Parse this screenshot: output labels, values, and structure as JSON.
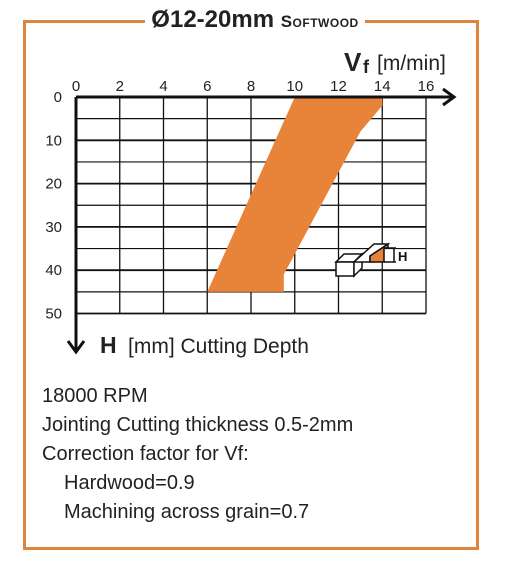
{
  "title": "Ø12-20mm",
  "subtitle": "Softwood",
  "chart_data": {
    "type": "area",
    "x_axis": {
      "label_symbol": "V",
      "label_subscript": "f",
      "label_unit": "[m/min]",
      "range": [
        0,
        16
      ],
      "ticks": [
        0,
        2,
        4,
        6,
        8,
        10,
        12,
        14,
        16
      ],
      "position": "top"
    },
    "y_axis": {
      "label_symbol": "H",
      "label_text": "[mm] Cutting Depth",
      "range": [
        0,
        50
      ],
      "ticks": [
        0,
        10,
        20,
        30,
        40,
        50
      ],
      "inverted": true
    },
    "grid": true,
    "region": {
      "color": "#e8833a",
      "points": [
        [
          10,
          0
        ],
        [
          14,
          0
        ],
        [
          14,
          2
        ],
        [
          13,
          8
        ],
        [
          9.5,
          41
        ],
        [
          9.5,
          45
        ],
        [
          6,
          45
        ]
      ]
    },
    "inset_label": "H"
  },
  "notes": [
    "18000 RPM",
    "Jointing Cutting thickness 0.5-2mm",
    "Correction factor for Vf:",
    "Hardwood=0.9",
    "Machining across grain=0.7"
  ]
}
